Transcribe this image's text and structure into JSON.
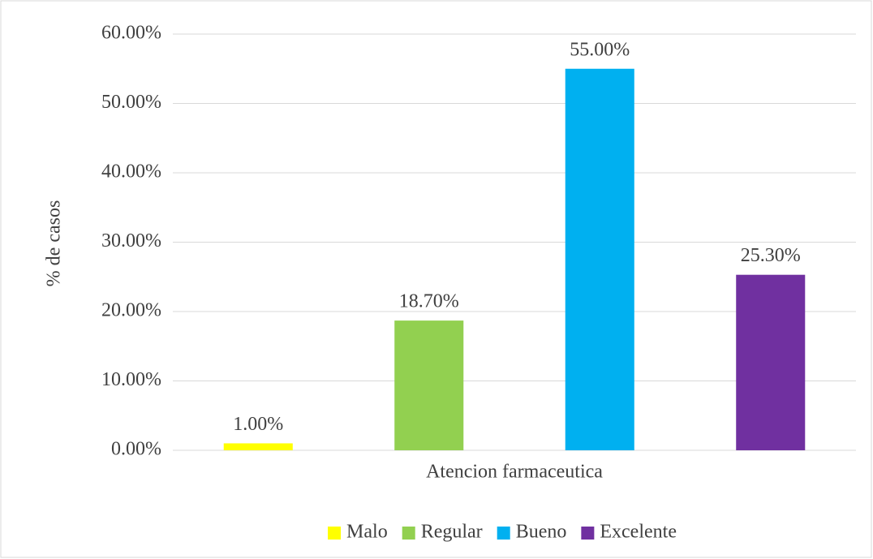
{
  "chart_data": {
    "type": "bar",
    "categories": [
      "Atencion farmaceutica"
    ],
    "y_label": "% de casos",
    "series": [
      {
        "name": "Malo",
        "color": "#ffff00",
        "values": [
          1.0
        ],
        "value_labels": [
          "1.00%"
        ]
      },
      {
        "name": "Regular",
        "color": "#92d050",
        "values": [
          18.7
        ],
        "value_labels": [
          "18.70%"
        ]
      },
      {
        "name": "Bueno",
        "color": "#00b0f0",
        "values": [
          55.0
        ],
        "value_labels": [
          "55.00%"
        ]
      },
      {
        "name": "Excelente",
        "color": "#7030a0",
        "values": [
          25.3
        ],
        "value_labels": [
          "25.30%"
        ]
      }
    ],
    "ylim": [
      0,
      60
    ],
    "yticks": [
      {
        "value": 0,
        "label": "0.00%"
      },
      {
        "value": 10,
        "label": "10.00%"
      },
      {
        "value": 20,
        "label": "20.00%"
      },
      {
        "value": 30,
        "label": "30.00%"
      },
      {
        "value": 40,
        "label": "40.00%"
      },
      {
        "value": 50,
        "label": "50.00%"
      },
      {
        "value": 60,
        "label": "60.00%"
      }
    ],
    "grid": true,
    "legend": "bottom"
  }
}
